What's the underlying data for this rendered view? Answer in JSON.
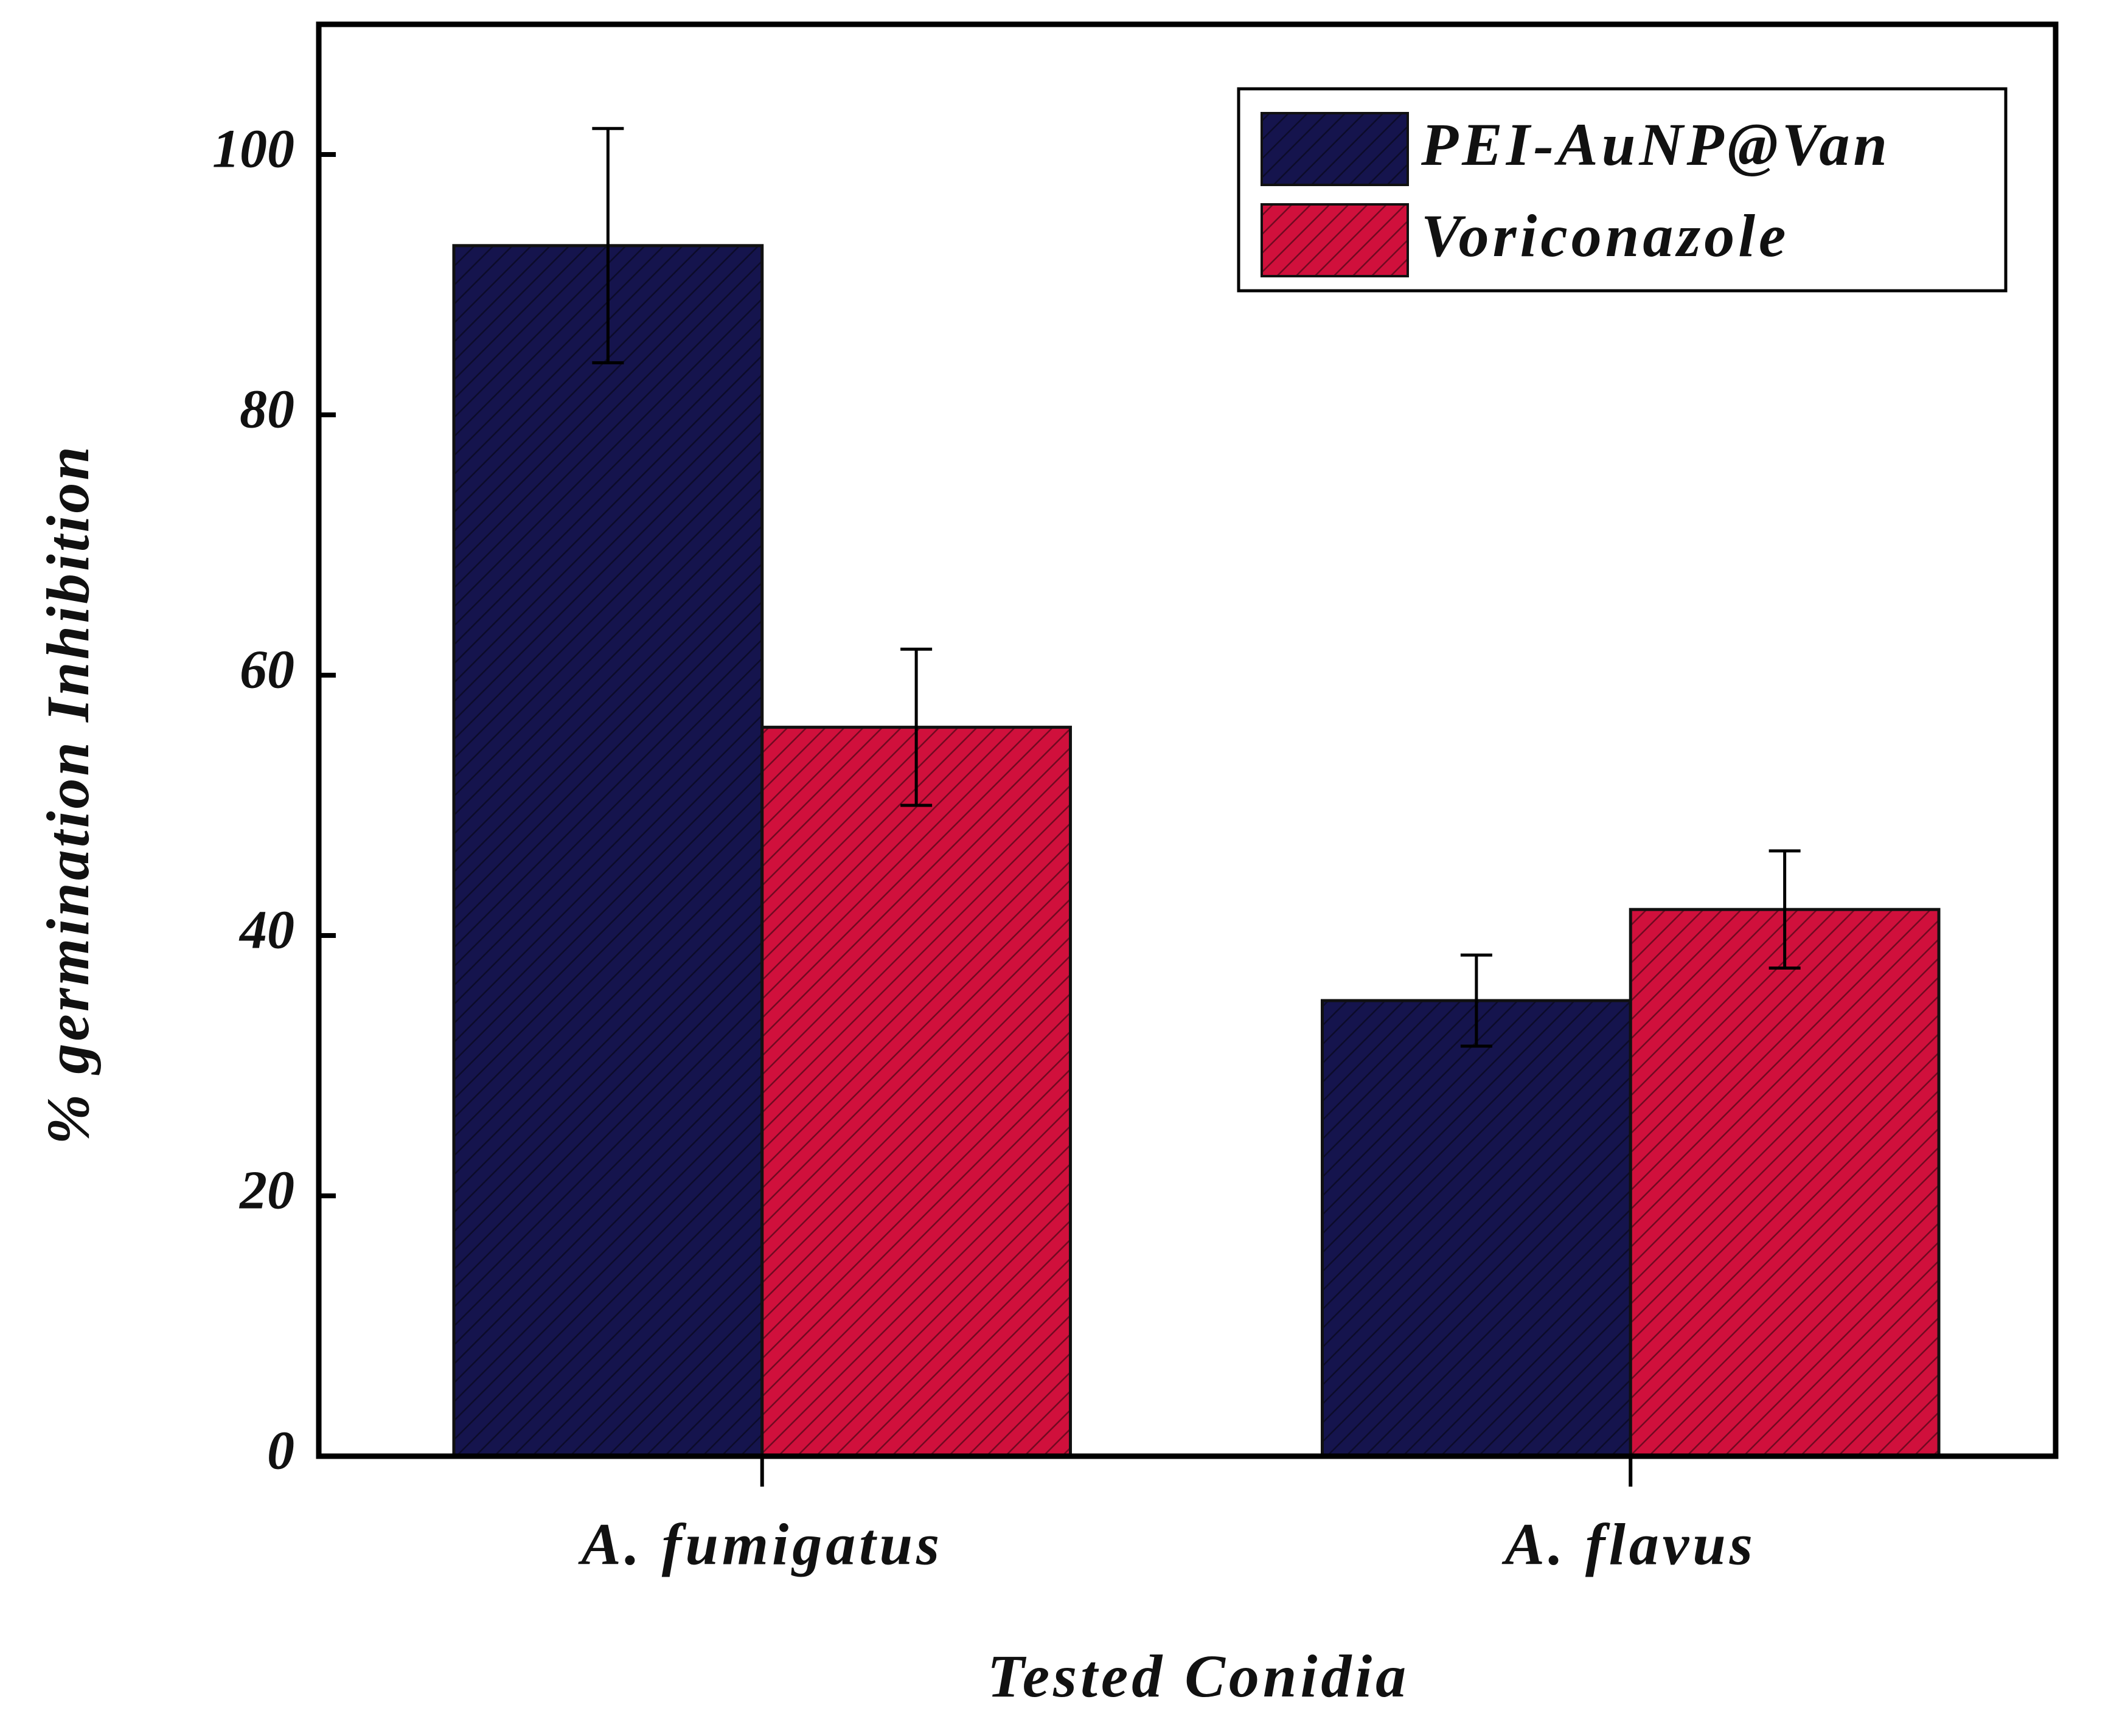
{
  "chart_data": {
    "type": "bar",
    "x_label": "Tested Conidia",
    "y_label": "% germination Inhibition",
    "categories": [
      "A. fumigatus",
      "A. flavus"
    ],
    "series": [
      {
        "name": "PEI-AuNP@Van",
        "color": "#15144d",
        "values": [
          93,
          35
        ],
        "errors": [
          9,
          3.5
        ]
      },
      {
        "name": "Voriconazole",
        "color": "#d0103c",
        "values": [
          56,
          42
        ],
        "errors": [
          6,
          4.5
        ]
      }
    ],
    "ylim": [
      0,
      110
    ],
    "yticks": [
      0,
      20,
      40,
      60,
      80,
      100
    ],
    "legend": "upper right"
  }
}
